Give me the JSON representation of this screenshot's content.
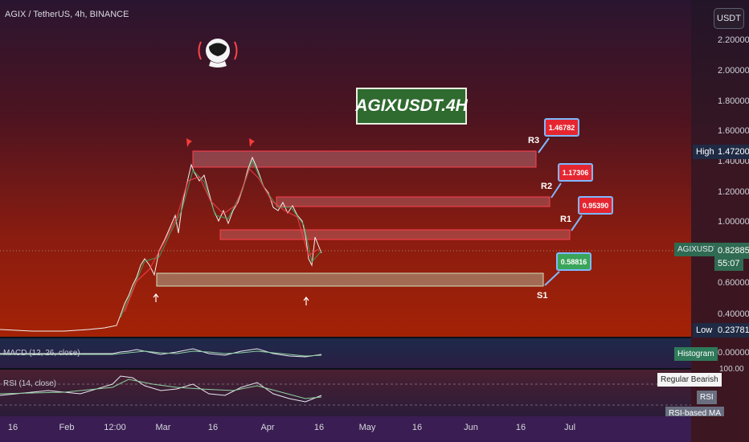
{
  "symbol_title": "AGIX / TetherUS, 4h, BINANCE",
  "axis_button": "USDT",
  "title_box": "AGIXUSDT.4H",
  "price_ticks": [
    "2.20000",
    "2.00000",
    "1.80000",
    "1.60000",
    "1.40000",
    "1.20000",
    "1.00000",
    "0.60000",
    "0.40000"
  ],
  "axis_tags": {
    "high_label": "High",
    "high_value": "1.47200",
    "symbol_tag": "AGIXUSDT",
    "last_price": "0.82885",
    "countdown": "55:07",
    "low_label": "Low",
    "low_value": "0.23781",
    "macd_value": "0.00000",
    "rsi_top": "100.00"
  },
  "levels": [
    {
      "name": "R3",
      "value": "1.46782",
      "color": "red"
    },
    {
      "name": "R2",
      "value": "1.17306",
      "color": "red"
    },
    {
      "name": "R1",
      "value": "0.95390",
      "color": "red"
    },
    {
      "name": "S1",
      "value": "0.58816",
      "color": "green"
    }
  ],
  "indicators": {
    "macd_label": "MACD (12, 26, close)",
    "histogram_tag": "Histogram",
    "rsi_label": "RSI (14, close)",
    "regular_bearish": "Regular Bearish",
    "rsi_tag": "RSI",
    "rsi_ma_tag": "RSI-based MA"
  },
  "time_labels": [
    "16",
    "Feb",
    "12:00",
    "Mar",
    "16",
    "Apr",
    "16",
    "May",
    "16",
    "Jun",
    "16",
    "Jul"
  ],
  "colors": {
    "accent_red": "#e52631",
    "accent_green": "#3aa55a",
    "callout_border": "#7fb8ff",
    "axis_bg": "#3a1d52"
  },
  "icons": [
    "astronaut-logo-icon",
    "arrow-up-icon",
    "pin-marker-icon"
  ]
}
